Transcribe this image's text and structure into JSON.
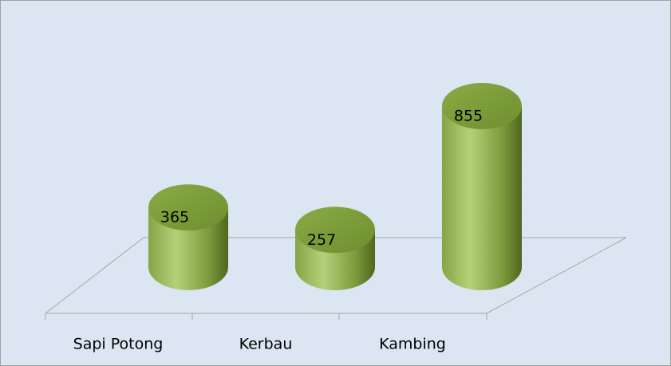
{
  "chart_data": {
    "type": "bar",
    "categories": [
      "Sapi Potong",
      "Kerbau",
      "Kambing"
    ],
    "values": [
      365,
      257,
      855
    ],
    "color": "#9bbb59"
  }
}
